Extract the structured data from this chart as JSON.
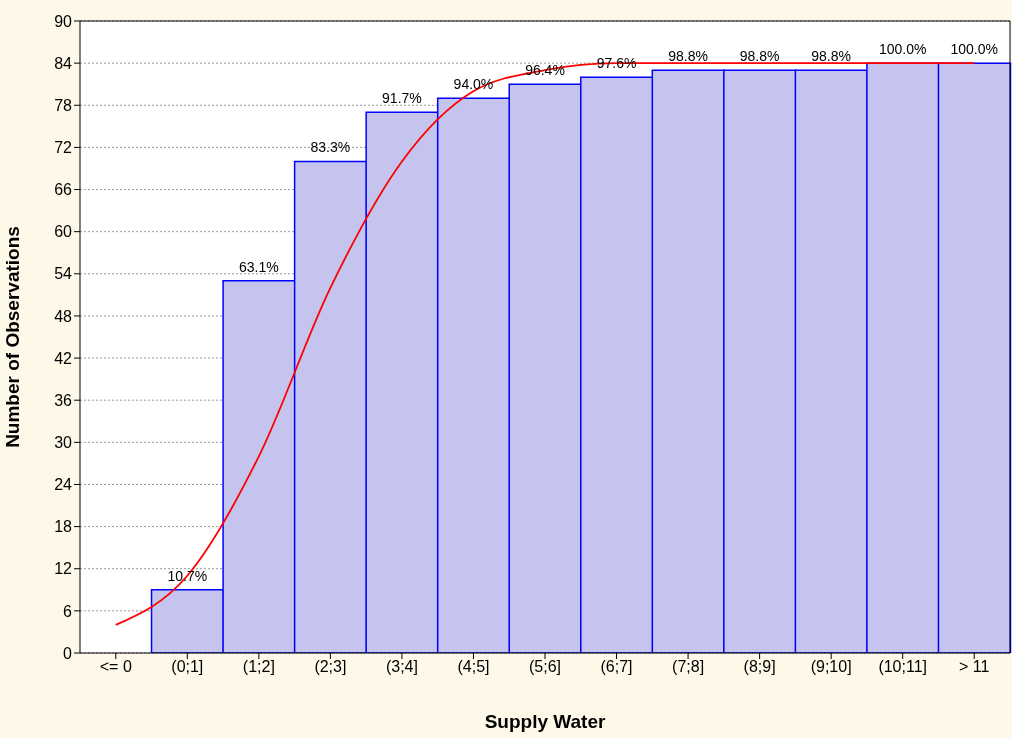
{
  "chart_data": {
    "type": "bar",
    "xlabel": "Supply Water",
    "ylabel": "Number of Observations",
    "categories": [
      "<= 0",
      "(0;1]",
      "(1;2]",
      "(2;3]",
      "(3;4]",
      "(4;5]",
      "(5;6]",
      "(6;7]",
      "(7;8]",
      "(8;9]",
      "(9;10]",
      "(10;11]",
      "> 11"
    ],
    "ylim": [
      0,
      90
    ],
    "yticks": [
      0,
      6,
      12,
      18,
      24,
      30,
      36,
      42,
      48,
      54,
      60,
      66,
      72,
      78,
      84,
      90
    ],
    "grid": "y",
    "legend": false,
    "series": [
      {
        "color": "#c4c4ee",
        "values": [
          0,
          9,
          53,
          70,
          77,
          79,
          81,
          82,
          83,
          83,
          83,
          84,
          84
        ]
      },
      {
        "type": "line",
        "color": "#ff0000",
        "values": [
          4,
          11,
          28,
          52,
          70,
          80,
          83,
          84,
          84,
          84,
          84,
          84,
          84
        ]
      }
    ],
    "annotations": [
      {
        "text": "10.7%",
        "x": "(0;1]",
        "y": 9
      },
      {
        "text": "63.1%",
        "x": "(1;2]",
        "y": 53
      },
      {
        "text": "83.3%",
        "x": "(2;3]",
        "y": 70
      },
      {
        "text": "91.7%",
        "x": "(3;4]",
        "y": 77
      },
      {
        "text": "94.0%",
        "x": "(4;5]",
        "y": 79
      },
      {
        "text": "96.4%",
        "x": "(5;6]",
        "y": 81
      },
      {
        "text": "97.6%",
        "x": "(6;7]",
        "y": 82
      },
      {
        "text": "98.8%",
        "x": "(7;8]",
        "y": 83
      },
      {
        "text": "98.8%",
        "x": "(8;9]",
        "y": 83
      },
      {
        "text": "98.8%",
        "x": "(9;10]",
        "y": 83
      },
      {
        "text": "100.0%",
        "x": "(10;11]",
        "y": 84
      },
      {
        "text": "100.0%",
        "x": "> 11",
        "y": 84
      }
    ]
  }
}
